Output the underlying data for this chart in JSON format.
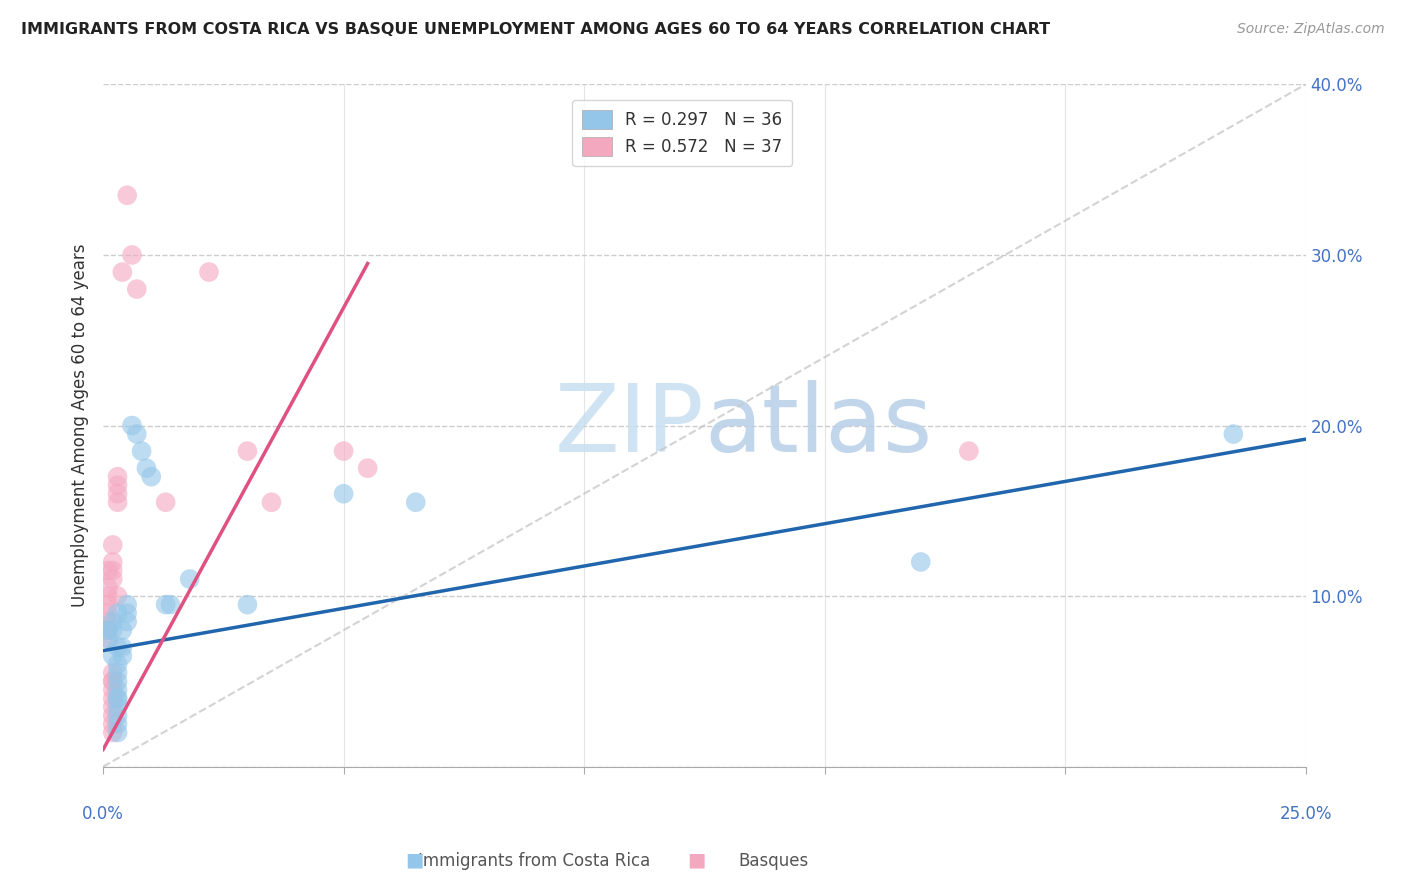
{
  "title": "IMMIGRANTS FROM COSTA RICA VS BASQUE UNEMPLOYMENT AMONG AGES 60 TO 64 YEARS CORRELATION CHART",
  "source": "Source: ZipAtlas.com",
  "ylabel": "Unemployment Among Ages 60 to 64 years",
  "xlim": [
    0.0,
    0.25
  ],
  "ylim": [
    0.0,
    0.4
  ],
  "xticks": [
    0.0,
    0.05,
    0.1,
    0.15,
    0.2,
    0.25
  ],
  "yticks": [
    0.0,
    0.1,
    0.2,
    0.3,
    0.4
  ],
  "xtick_labels": [
    "0.0%",
    "",
    "",
    "",
    "",
    "25.0%"
  ],
  "ytick_labels": [
    "",
    "10.0%",
    "20.0%",
    "30.0%",
    "40.0%"
  ],
  "legend_blue_label": "R = 0.297   N = 36",
  "legend_pink_label": "R = 0.572   N = 37",
  "watermark_zip": "ZIP",
  "watermark_atlas": "atlas",
  "blue_color": "#93c6e8",
  "pink_color": "#f4a8c0",
  "blue_edge_color": "#6baed6",
  "pink_edge_color": "#f08080",
  "blue_line_color": "#2166ac",
  "pink_line_color": "#e05080",
  "blue_scatter": [
    [
      0.001,
      0.075
    ],
    [
      0.001,
      0.08
    ],
    [
      0.002,
      0.085
    ],
    [
      0.002,
      0.08
    ],
    [
      0.002,
      0.065
    ],
    [
      0.003,
      0.07
    ],
    [
      0.003,
      0.09
    ],
    [
      0.003,
      0.06
    ],
    [
      0.003,
      0.055
    ],
    [
      0.003,
      0.05
    ],
    [
      0.003,
      0.045
    ],
    [
      0.003,
      0.04
    ],
    [
      0.003,
      0.035
    ],
    [
      0.003,
      0.04
    ],
    [
      0.003,
      0.03
    ],
    [
      0.003,
      0.025
    ],
    [
      0.003,
      0.02
    ],
    [
      0.004,
      0.065
    ],
    [
      0.004,
      0.07
    ],
    [
      0.004,
      0.08
    ],
    [
      0.005,
      0.085
    ],
    [
      0.005,
      0.095
    ],
    [
      0.005,
      0.09
    ],
    [
      0.006,
      0.2
    ],
    [
      0.007,
      0.195
    ],
    [
      0.008,
      0.185
    ],
    [
      0.009,
      0.175
    ],
    [
      0.01,
      0.17
    ],
    [
      0.013,
      0.095
    ],
    [
      0.014,
      0.095
    ],
    [
      0.018,
      0.11
    ],
    [
      0.03,
      0.095
    ],
    [
      0.05,
      0.16
    ],
    [
      0.065,
      0.155
    ],
    [
      0.17,
      0.12
    ],
    [
      0.235,
      0.195
    ]
  ],
  "pink_scatter": [
    [
      0.001,
      0.08
    ],
    [
      0.001,
      0.085
    ],
    [
      0.001,
      0.075
    ],
    [
      0.001,
      0.09
    ],
    [
      0.001,
      0.095
    ],
    [
      0.001,
      0.1
    ],
    [
      0.001,
      0.105
    ],
    [
      0.001,
      0.115
    ],
    [
      0.002,
      0.115
    ],
    [
      0.002,
      0.13
    ],
    [
      0.002,
      0.12
    ],
    [
      0.002,
      0.11
    ],
    [
      0.002,
      0.05
    ],
    [
      0.002,
      0.055
    ],
    [
      0.002,
      0.045
    ],
    [
      0.002,
      0.05
    ],
    [
      0.002,
      0.04
    ],
    [
      0.002,
      0.035
    ],
    [
      0.002,
      0.03
    ],
    [
      0.002,
      0.025
    ],
    [
      0.002,
      0.02
    ],
    [
      0.003,
      0.1
    ],
    [
      0.003,
      0.155
    ],
    [
      0.003,
      0.165
    ],
    [
      0.003,
      0.16
    ],
    [
      0.003,
      0.17
    ],
    [
      0.004,
      0.29
    ],
    [
      0.005,
      0.335
    ],
    [
      0.006,
      0.3
    ],
    [
      0.007,
      0.28
    ],
    [
      0.013,
      0.155
    ],
    [
      0.022,
      0.29
    ],
    [
      0.03,
      0.185
    ],
    [
      0.035,
      0.155
    ],
    [
      0.05,
      0.185
    ],
    [
      0.055,
      0.175
    ],
    [
      0.18,
      0.185
    ]
  ],
  "blue_line": {
    "x0": 0.0,
    "y0": 0.068,
    "x1": 0.25,
    "y1": 0.192
  },
  "pink_line": {
    "x0": 0.0,
    "y0": 0.01,
    "x1": 0.055,
    "y1": 0.295
  },
  "ref_line": {
    "x0": 0.0,
    "y0": 0.0,
    "x1": 0.25,
    "y1": 0.4
  }
}
